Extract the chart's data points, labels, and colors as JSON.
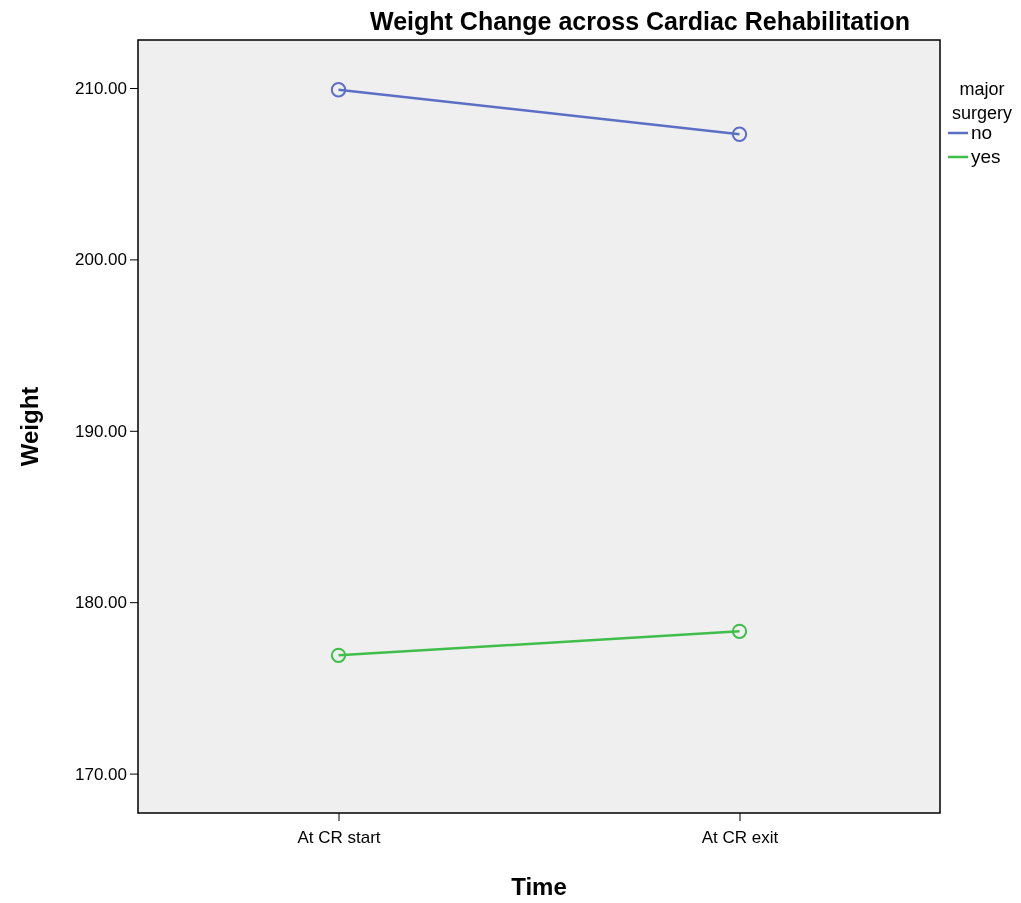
{
  "chart_data": {
    "type": "line",
    "title": "Weight Change across Cardiac Rehabilitation",
    "xlabel": "Time",
    "ylabel": "Weight",
    "legend_title": "major surgery",
    "categories": [
      "At CR start",
      "At CR exit"
    ],
    "series": [
      {
        "name": "no",
        "color": "#5b6fc4",
        "values": [
          209.9,
          207.3
        ]
      },
      {
        "name": "yes",
        "color": "#3fbf4a",
        "values": [
          176.9,
          178.3
        ]
      }
    ],
    "ylim": [
      167.7,
      212.8
    ],
    "yticks": [
      {
        "value": 170,
        "label": "170.00"
      },
      {
        "value": 180,
        "label": "180.00"
      },
      {
        "value": 190,
        "label": "190.00"
      },
      {
        "value": 200,
        "label": "200.00"
      },
      {
        "value": 210,
        "label": "210.00"
      }
    ],
    "marker": "circle",
    "legend": "top right",
    "grid": false
  }
}
